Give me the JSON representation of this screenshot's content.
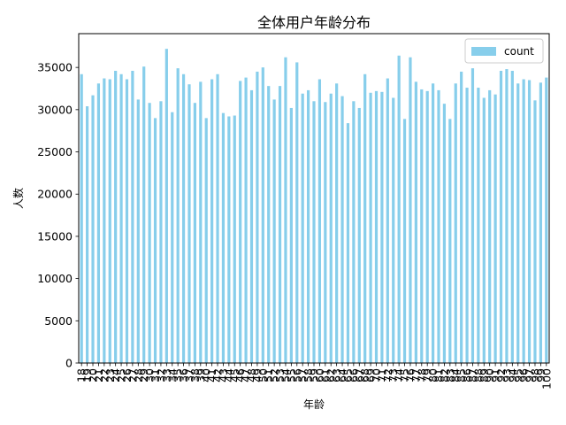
{
  "chart_data": {
    "type": "bar",
    "title": "全体用户年龄分布",
    "xlabel": "年龄",
    "ylabel": "人数",
    "ylim": [
      0,
      39000
    ],
    "yticks": [
      0,
      5000,
      10000,
      15000,
      20000,
      25000,
      30000,
      35000
    ],
    "bar_color": "#87ceeb",
    "legend": {
      "placement": "top-right",
      "entries": [
        "count"
      ]
    },
    "categories": [
      18,
      19,
      20,
      21,
      22,
      23,
      24,
      25,
      26,
      27,
      28,
      29,
      30,
      31,
      32,
      33,
      34,
      35,
      36,
      37,
      38,
      39,
      40,
      41,
      42,
      43,
      44,
      45,
      46,
      47,
      48,
      49,
      50,
      51,
      52,
      53,
      54,
      55,
      56,
      57,
      58,
      59,
      60,
      61,
      62,
      63,
      64,
      65,
      66,
      67,
      68,
      69,
      70,
      71,
      72,
      73,
      74,
      75,
      76,
      77,
      78,
      79,
      80,
      81,
      82,
      83,
      84,
      85,
      86,
      87,
      88,
      89,
      90,
      91,
      92,
      93,
      94,
      95,
      96,
      97,
      98,
      99,
      100
    ],
    "series": [
      {
        "name": "count",
        "values": [
          34200,
          30400,
          31700,
          33100,
          33700,
          33600,
          34600,
          34200,
          33600,
          34600,
          31200,
          35100,
          30800,
          29000,
          31000,
          37200,
          29700,
          34900,
          34200,
          33000,
          30800,
          33300,
          29000,
          33600,
          34200,
          29600,
          29200,
          29300,
          33400,
          33800,
          32300,
          34500,
          35000,
          32800,
          31200,
          32800,
          36200,
          30200,
          35600,
          31900,
          32300,
          31000,
          33600,
          30900,
          31900,
          33100,
          31600,
          28400,
          31000,
          30200,
          34200,
          32000,
          32200,
          32100,
          33700,
          31400,
          36400,
          28900,
          36200,
          33300,
          32400,
          32200,
          33100,
          32300,
          30700,
          28900,
          33100,
          34500,
          32600,
          34900,
          32600,
          31400,
          32300,
          31800,
          34600,
          34800,
          34600,
          33100,
          33600,
          33500,
          31100,
          33200,
          33800
        ]
      }
    ]
  }
}
